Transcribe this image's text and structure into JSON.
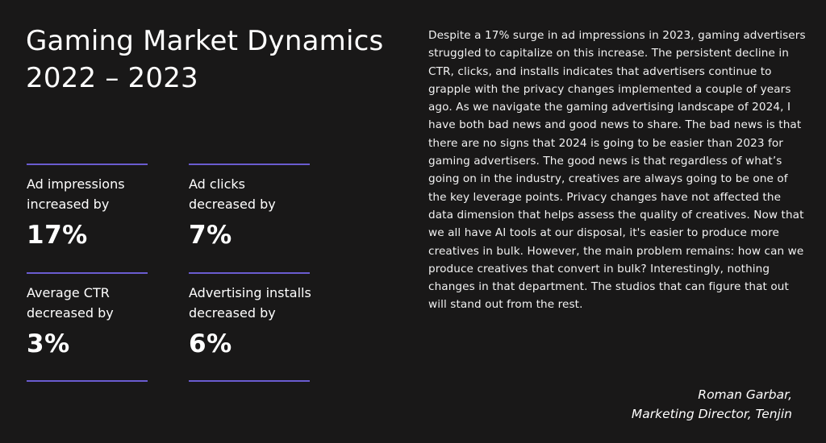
{
  "title": "Gaming Market Dynamics 2022 – 2023",
  "stats": [
    {
      "label_line1": "Ad impressions",
      "label_line2": "increased by",
      "value": "17%"
    },
    {
      "label_line1": "Ad clicks",
      "label_line2": "decreased by",
      "value": "7%"
    },
    {
      "label_line1": "Average CTR",
      "label_line2": "decreased by",
      "value": "3%"
    },
    {
      "label_line1": "Advertising installs",
      "label_line2": "decreased by",
      "value": "6%"
    }
  ],
  "body": "Despite a 17% surge in ad impressions in 2023, gaming advertisers struggled to capitalize on this increase. The persistent decline in CTR, clicks, and installs indicates that advertisers continue to grapple with the privacy changes implemented a couple of years ago. As we navigate the gaming advertising landscape of 2024, I have both bad news and good news to share. The bad news is that there are no signs that 2024 is going to be easier than 2023 for gaming advertisers. The good news is that regardless of what’s going on in the industry, creatives are always going to be one of the key leverage points. Privacy changes have not affected the data dimension that helps assess the quality of creatives. Now that we all have AI tools at our disposal, it's easier to produce more creatives in bulk. However, the main problem remains: how can we produce creatives that convert in bulk? Interestingly, nothing changes in that department. The studios that can figure that out will stand out from the rest.",
  "signature": {
    "name": "Roman Garbar,",
    "role": "Marketing Director, Tenjin"
  },
  "colors": {
    "background": "#191818",
    "accent_rule": "#6a5cd0",
    "text": "#ffffff"
  }
}
